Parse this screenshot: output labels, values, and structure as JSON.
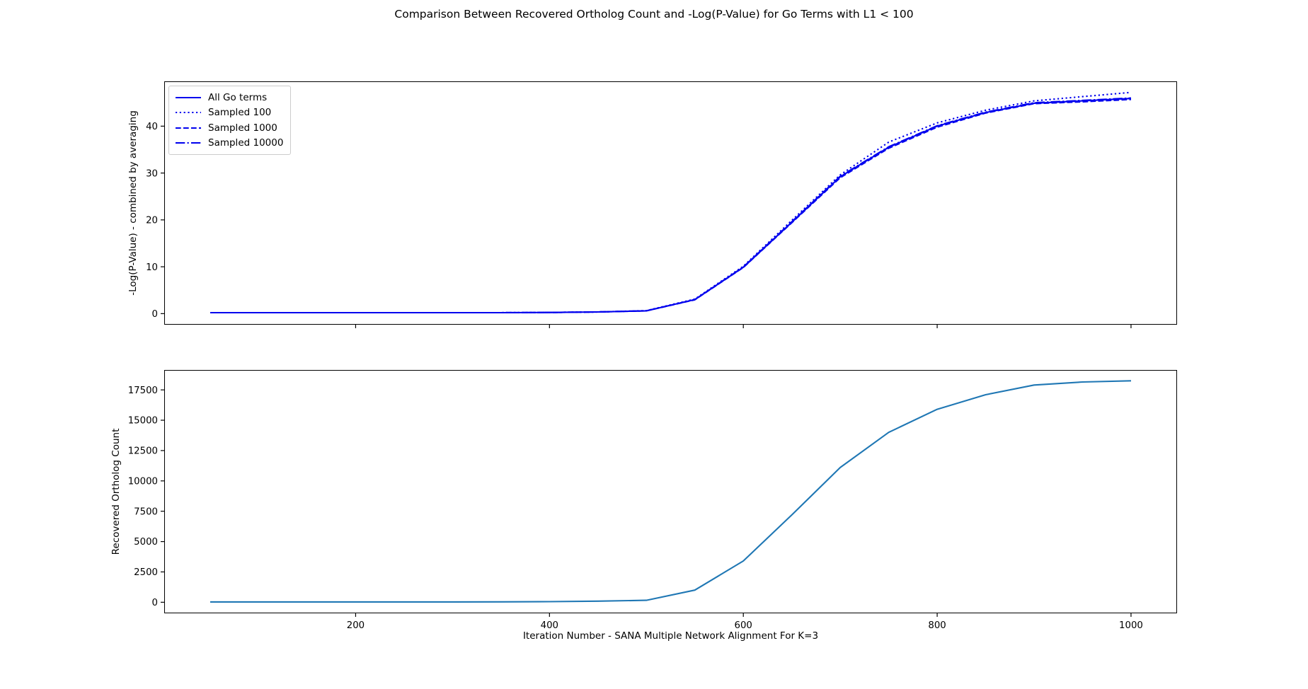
{
  "figure": {
    "title": "Comparison Between Recovered Ortholog Count and -Log(P-Value) for Go Terms with L1 < 100",
    "background_color": "#ffffff",
    "axis_color": "#000000"
  },
  "chart_data": [
    {
      "type": "line",
      "name": "pvalue-chart",
      "title": "",
      "xlabel": "",
      "ylabel": "-Log(P-Value) - combined by averaging",
      "grid": false,
      "legend_position": "upper-left",
      "xlim": [
        2.5,
        1047.5
      ],
      "ylim": [
        -2.36,
        49.56
      ],
      "xticks": [
        200,
        400,
        600,
        800,
        1000
      ],
      "yticks": [
        0,
        10,
        20,
        30,
        40
      ],
      "show_xtick_labels": false,
      "x": [
        50,
        100,
        150,
        200,
        250,
        300,
        350,
        400,
        450,
        500,
        550,
        600,
        650,
        700,
        750,
        800,
        850,
        900,
        950,
        1000
      ],
      "series": [
        {
          "name": "All Go terms",
          "style": "solid",
          "color": "#0000ee",
          "values": [
            0.2,
            0.2,
            0.2,
            0.2,
            0.2,
            0.2,
            0.2,
            0.25,
            0.35,
            0.6,
            3.0,
            9.9,
            19.5,
            29.2,
            35.5,
            40.0,
            42.9,
            44.9,
            45.4,
            45.9
          ]
        },
        {
          "name": "Sampled 100",
          "style": "dotted",
          "color": "#0000ee",
          "values": [
            0.2,
            0.2,
            0.2,
            0.2,
            0.2,
            0.2,
            0.2,
            0.25,
            0.35,
            0.65,
            3.1,
            10.1,
            19.9,
            29.6,
            36.6,
            40.7,
            43.4,
            45.4,
            46.3,
            47.2
          ]
        },
        {
          "name": "Sampled 1000",
          "style": "dashed",
          "color": "#0000ee",
          "values": [
            0.2,
            0.2,
            0.2,
            0.2,
            0.2,
            0.2,
            0.2,
            0.25,
            0.35,
            0.6,
            2.95,
            9.85,
            19.4,
            29.0,
            35.3,
            39.8,
            42.8,
            44.8,
            45.2,
            45.7
          ]
        },
        {
          "name": "Sampled 10000",
          "style": "dashdot",
          "color": "#0000ee",
          "values": [
            0.2,
            0.2,
            0.2,
            0.2,
            0.2,
            0.2,
            0.2,
            0.25,
            0.35,
            0.6,
            3.0,
            9.95,
            19.6,
            29.3,
            35.6,
            40.1,
            43.0,
            45.0,
            45.5,
            46.0
          ]
        }
      ]
    },
    {
      "type": "line",
      "name": "ortholog-chart",
      "title": "",
      "xlabel": "Iteration Number - SANA Multiple Network Alignment For K=3",
      "ylabel": "Recovered Ortholog Count",
      "grid": false,
      "legend_position": "none",
      "xlim": [
        2.5,
        1047.5
      ],
      "ylim": [
        -911,
        19141
      ],
      "xticks": [
        200,
        400,
        600,
        800,
        1000
      ],
      "yticks": [
        0,
        2500,
        5000,
        7500,
        10000,
        12500,
        15000,
        17500
      ],
      "show_xtick_labels": true,
      "x": [
        50,
        100,
        150,
        200,
        250,
        300,
        350,
        400,
        450,
        500,
        550,
        600,
        650,
        700,
        750,
        800,
        850,
        900,
        950,
        1000
      ],
      "series": [
        {
          "name": "Recovered Ortholog Count",
          "style": "solid",
          "color": "#1f77b4",
          "values": [
            30,
            30,
            30,
            30,
            30,
            30,
            35,
            50,
            90,
            160,
            1000,
            3400,
            7200,
            11100,
            14000,
            15900,
            17100,
            17900,
            18150,
            18250
          ]
        }
      ]
    }
  ]
}
